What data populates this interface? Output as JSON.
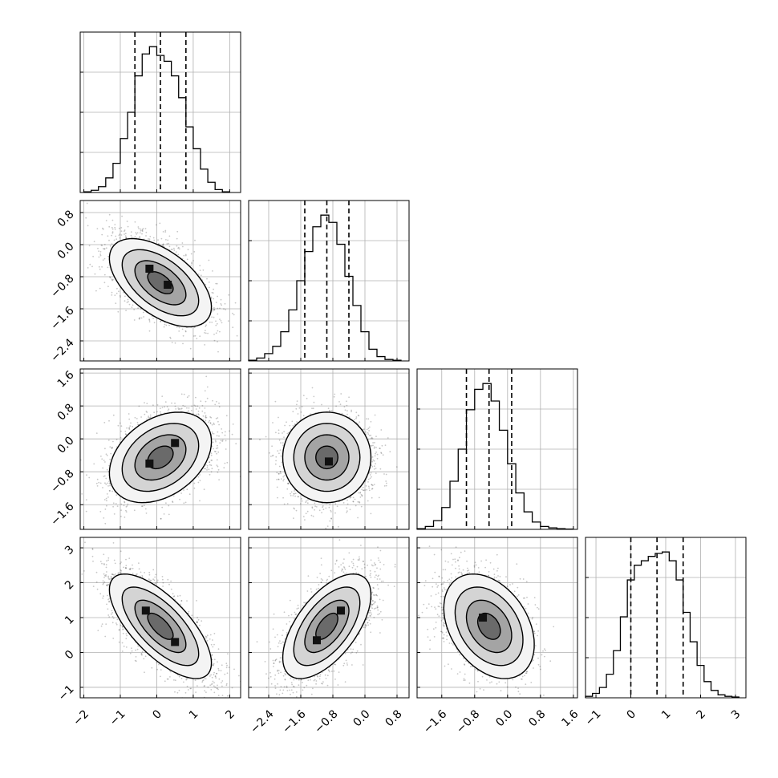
{
  "chart_data": {
    "type": "corner",
    "title": "",
    "parameters": [
      {
        "xlim": [
          -2.1,
          2.3
        ],
        "ticks": [
          -2,
          -1,
          0,
          1,
          2
        ],
        "tick_labels": [
          "−2",
          "−1",
          "0",
          "1",
          "2"
        ],
        "quantiles": [
          -0.6,
          0.1,
          0.8
        ],
        "hist_x": [
          -1.9,
          -1.7,
          -1.5,
          -1.3,
          -1.1,
          -0.9,
          -0.7,
          -0.5,
          -0.3,
          -0.1,
          0.1,
          0.3,
          0.5,
          0.7,
          0.9,
          1.1,
          1.3,
          1.5,
          1.7,
          1.9
        ],
        "hist_values": [
          0.005,
          0.015,
          0.04,
          0.1,
          0.2,
          0.37,
          0.55,
          0.8,
          0.95,
          1.0,
          0.94,
          0.9,
          0.8,
          0.65,
          0.45,
          0.3,
          0.16,
          0.07,
          0.02,
          0.005
        ]
      },
      {
        "xlim": [
          -2.9,
          1.1
        ],
        "ticks": [
          -2.4,
          -1.6,
          -0.8,
          0.0,
          0.8
        ],
        "tick_labels": [
          "−2.4",
          "−1.6",
          "−0.8",
          "0.0",
          "0.8"
        ],
        "quantiles": [
          -1.5,
          -0.95,
          -0.4
        ],
        "hist_x": [
          -2.8,
          -2.6,
          -2.4,
          -2.2,
          -2.0,
          -1.8,
          -1.6,
          -1.4,
          -1.2,
          -1.0,
          -0.8,
          -0.6,
          -0.4,
          -0.2,
          0.0,
          0.2,
          0.4,
          0.6,
          0.8
        ],
        "hist_values": [
          0.005,
          0.02,
          0.05,
          0.1,
          0.2,
          0.35,
          0.55,
          0.75,
          0.92,
          1.0,
          0.95,
          0.8,
          0.58,
          0.38,
          0.2,
          0.08,
          0.03,
          0.01,
          0.005
        ]
      },
      {
        "xlim": [
          -2.2,
          1.7
        ],
        "ticks": [
          -1.6,
          -0.8,
          0.0,
          0.8,
          1.6
        ],
        "tick_labels": [
          "−1.6",
          "−0.8",
          "0.0",
          "0.8",
          "1.6"
        ],
        "quantiles": [
          -1.0,
          -0.45,
          0.1
        ],
        "hist_x": [
          -2.1,
          -1.9,
          -1.7,
          -1.5,
          -1.3,
          -1.1,
          -0.9,
          -0.7,
          -0.5,
          -0.3,
          -0.1,
          0.1,
          0.3,
          0.5,
          0.7,
          0.9,
          1.1,
          1.3,
          1.5
        ],
        "hist_values": [
          0.005,
          0.02,
          0.06,
          0.15,
          0.33,
          0.55,
          0.82,
          0.96,
          1.0,
          0.88,
          0.68,
          0.45,
          0.25,
          0.12,
          0.05,
          0.02,
          0.01,
          0.005,
          0.002
        ]
      },
      {
        "xlim": [
          -1.3,
          3.3
        ],
        "ticks": [
          -1,
          0,
          1,
          2,
          3
        ],
        "tick_labels": [
          "−1",
          "0",
          "1",
          "2",
          "3"
        ],
        "quantiles": [
          0.0,
          0.75,
          1.5
        ],
        "hist_x": [
          -1.2,
          -1.0,
          -0.8,
          -0.6,
          -0.4,
          -0.2,
          0.0,
          0.2,
          0.4,
          0.6,
          0.8,
          1.0,
          1.2,
          1.4,
          1.6,
          1.8,
          2.0,
          2.2,
          2.4,
          2.6,
          2.8,
          3.0
        ],
        "hist_values": [
          0.01,
          0.03,
          0.07,
          0.16,
          0.32,
          0.55,
          0.8,
          0.9,
          0.93,
          0.96,
          0.98,
          0.99,
          0.93,
          0.8,
          0.58,
          0.38,
          0.22,
          0.11,
          0.05,
          0.02,
          0.01,
          0.005
        ]
      }
    ],
    "pairs": [
      {
        "xi": 0,
        "yi": 1,
        "x_mean": 0.1,
        "y_mean": -0.95,
        "sx": 0.7,
        "sy": 0.55,
        "rho": -0.55,
        "modes": [
          [
            -0.2,
            -0.6
          ],
          [
            0.3,
            -1.0
          ]
        ]
      },
      {
        "xi": 0,
        "yi": 2,
        "x_mean": 0.1,
        "y_mean": -0.45,
        "sx": 0.7,
        "sy": 0.55,
        "rho": 0.35,
        "modes": [
          [
            -0.2,
            -0.6
          ],
          [
            0.5,
            -0.1
          ]
        ]
      },
      {
        "xi": 1,
        "yi": 2,
        "x_mean": -0.95,
        "y_mean": -0.45,
        "sx": 0.55,
        "sy": 0.55,
        "rho": 0.0,
        "modes": [
          [
            -0.9,
            -0.55
          ]
        ]
      },
      {
        "xi": 0,
        "yi": 3,
        "x_mean": 0.1,
        "y_mean": 0.75,
        "sx": 0.7,
        "sy": 0.75,
        "rho": -0.7,
        "modes": [
          [
            -0.3,
            1.2
          ],
          [
            0.5,
            0.3
          ]
        ]
      },
      {
        "xi": 1,
        "yi": 3,
        "x_mean": -0.95,
        "y_mean": 0.75,
        "sx": 0.55,
        "sy": 0.75,
        "rho": 0.6,
        "modes": [
          [
            -1.2,
            0.35
          ],
          [
            -0.6,
            1.2
          ]
        ]
      },
      {
        "xi": 2,
        "yi": 3,
        "x_mean": -0.45,
        "y_mean": 0.75,
        "sx": 0.55,
        "sy": 0.75,
        "rho": -0.35,
        "modes": [
          [
            -0.6,
            1.0
          ]
        ]
      }
    ]
  }
}
